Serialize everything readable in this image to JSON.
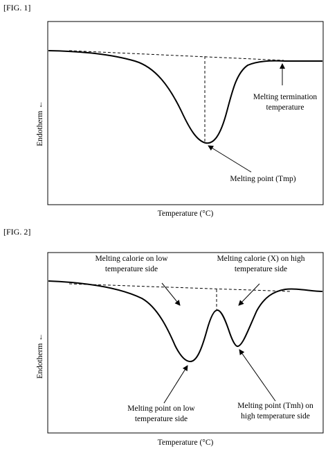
{
  "fig1": {
    "label": "[FIG. 1]",
    "xlabel": "Temperature (°C)",
    "ylabel": "Endotherm ←",
    "annotations": {
      "termination": [
        "Melting termination",
        "temperature"
      ],
      "melting_point": "Melting point (Tmp)"
    }
  },
  "fig2": {
    "label": "[FIG. 2]",
    "xlabel": "Temperature (°C)",
    "ylabel": "Endotherm ←",
    "annotations": {
      "calorie_low": [
        "Melting calorie on low",
        "temperature side"
      ],
      "calorie_high": [
        "Melting calorie (X) on high",
        "temperature side"
      ],
      "mp_low": [
        "Melting point on low",
        "temperature side"
      ],
      "mp_high": [
        "Melting point (Tmh) on",
        "high temperature side"
      ]
    }
  },
  "chart_data": [
    {
      "type": "line",
      "title": "[FIG. 1]",
      "xlabel": "Temperature (°C)",
      "ylabel": "Endotherm ←",
      "series": [
        {
          "x": [
            0,
            0.1,
            0.2,
            0.3,
            0.38,
            0.44,
            0.48,
            0.51,
            0.53,
            0.56,
            0.6,
            0.65,
            0.7,
            0.78,
            0.85,
            0.92,
            1.0
          ],
          "y": [
            0,
            -0.03,
            -0.08,
            -0.17,
            -0.32,
            -0.55,
            -0.78,
            -0.94,
            -1.0,
            -0.96,
            -0.72,
            -0.32,
            -0.12,
            -0.07,
            -0.07,
            -0.07,
            -0.07
          ]
        }
      ],
      "melting_point_x": 0.53,
      "termination_x": 0.85,
      "grid": false
    },
    {
      "type": "line",
      "title": "[FIG. 2]",
      "xlabel": "Temperature (°C)",
      "ylabel": "Endotherm ←",
      "series": [
        {
          "x": [
            0,
            0.1,
            0.2,
            0.28,
            0.34,
            0.38,
            0.42,
            0.45,
            0.49,
            0.53,
            0.55,
            0.58,
            0.62,
            0.66,
            0.72,
            0.78,
            0.85,
            0.92,
            1.0
          ],
          "y": [
            0,
            -0.03,
            -0.09,
            -0.2,
            -0.42,
            -0.7,
            -0.95,
            -1.0,
            -0.7,
            -0.32,
            -0.28,
            -0.45,
            -0.82,
            -0.82,
            -0.32,
            -0.08,
            -0.03,
            -0.03,
            -0.02
          ]
        }
      ],
      "low_peak_x": 0.45,
      "high_peak_x": 0.62,
      "split_x": 0.55,
      "grid": false
    }
  ]
}
